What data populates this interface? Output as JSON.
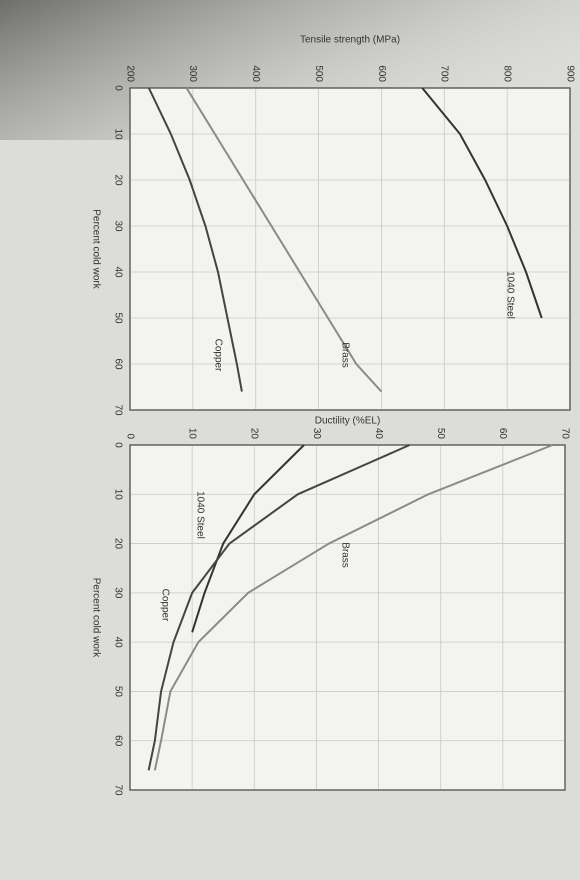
{
  "chart_data": [
    {
      "type": "line",
      "x_label": "Percent cold work",
      "y_label": "Tensile strength (MPa)",
      "xlim": [
        0,
        70
      ],
      "ylim": [
        200,
        900
      ],
      "xticks": [
        0,
        10,
        20,
        30,
        40,
        50,
        60,
        70
      ],
      "yticks": [
        200,
        300,
        400,
        500,
        600,
        700,
        800,
        900
      ],
      "grid": true,
      "series": [
        {
          "name": "1040 Steel",
          "color": "#333333",
          "x": [
            0,
            10,
            20,
            30,
            40,
            50
          ],
          "values": [
            665,
            725,
            765,
            800,
            830,
            855
          ]
        },
        {
          "name": "Brass",
          "color": "#8a8a8a",
          "x": [
            0,
            10,
            20,
            30,
            40,
            50,
            60,
            66
          ],
          "values": [
            290,
            335,
            380,
            425,
            470,
            515,
            560,
            600
          ]
        },
        {
          "name": "Copper",
          "color": "#444444",
          "x": [
            0,
            10,
            20,
            30,
            40,
            50,
            60,
            66
          ],
          "values": [
            230,
            265,
            295,
            320,
            340,
            355,
            370,
            378
          ]
        }
      ]
    },
    {
      "type": "line",
      "x_label": "Percent cold work",
      "y_label": "Ductility (%EL)",
      "xlim": [
        0,
        70
      ],
      "ylim": [
        0,
        70
      ],
      "xticks": [
        0,
        10,
        20,
        30,
        40,
        50,
        60,
        70
      ],
      "yticks": [
        0,
        10,
        20,
        30,
        40,
        50,
        60,
        70
      ],
      "grid": true,
      "series": [
        {
          "name": "Brass",
          "color": "#8a8a8a",
          "x": [
            0,
            10,
            20,
            30,
            40,
            50,
            60,
            66
          ],
          "values": [
            68,
            48,
            32,
            19,
            11,
            6.5,
            5,
            4
          ]
        },
        {
          "name": "1040 Steel",
          "color": "#333333",
          "x": [
            0,
            10,
            20,
            30,
            38
          ],
          "values": [
            28,
            20,
            15,
            12,
            10
          ]
        },
        {
          "name": "Copper",
          "color": "#444444",
          "x": [
            0,
            10,
            20,
            30,
            40,
            50,
            60,
            66
          ],
          "values": [
            45,
            27,
            16,
            10,
            7,
            5,
            4,
            3
          ]
        }
      ]
    }
  ]
}
